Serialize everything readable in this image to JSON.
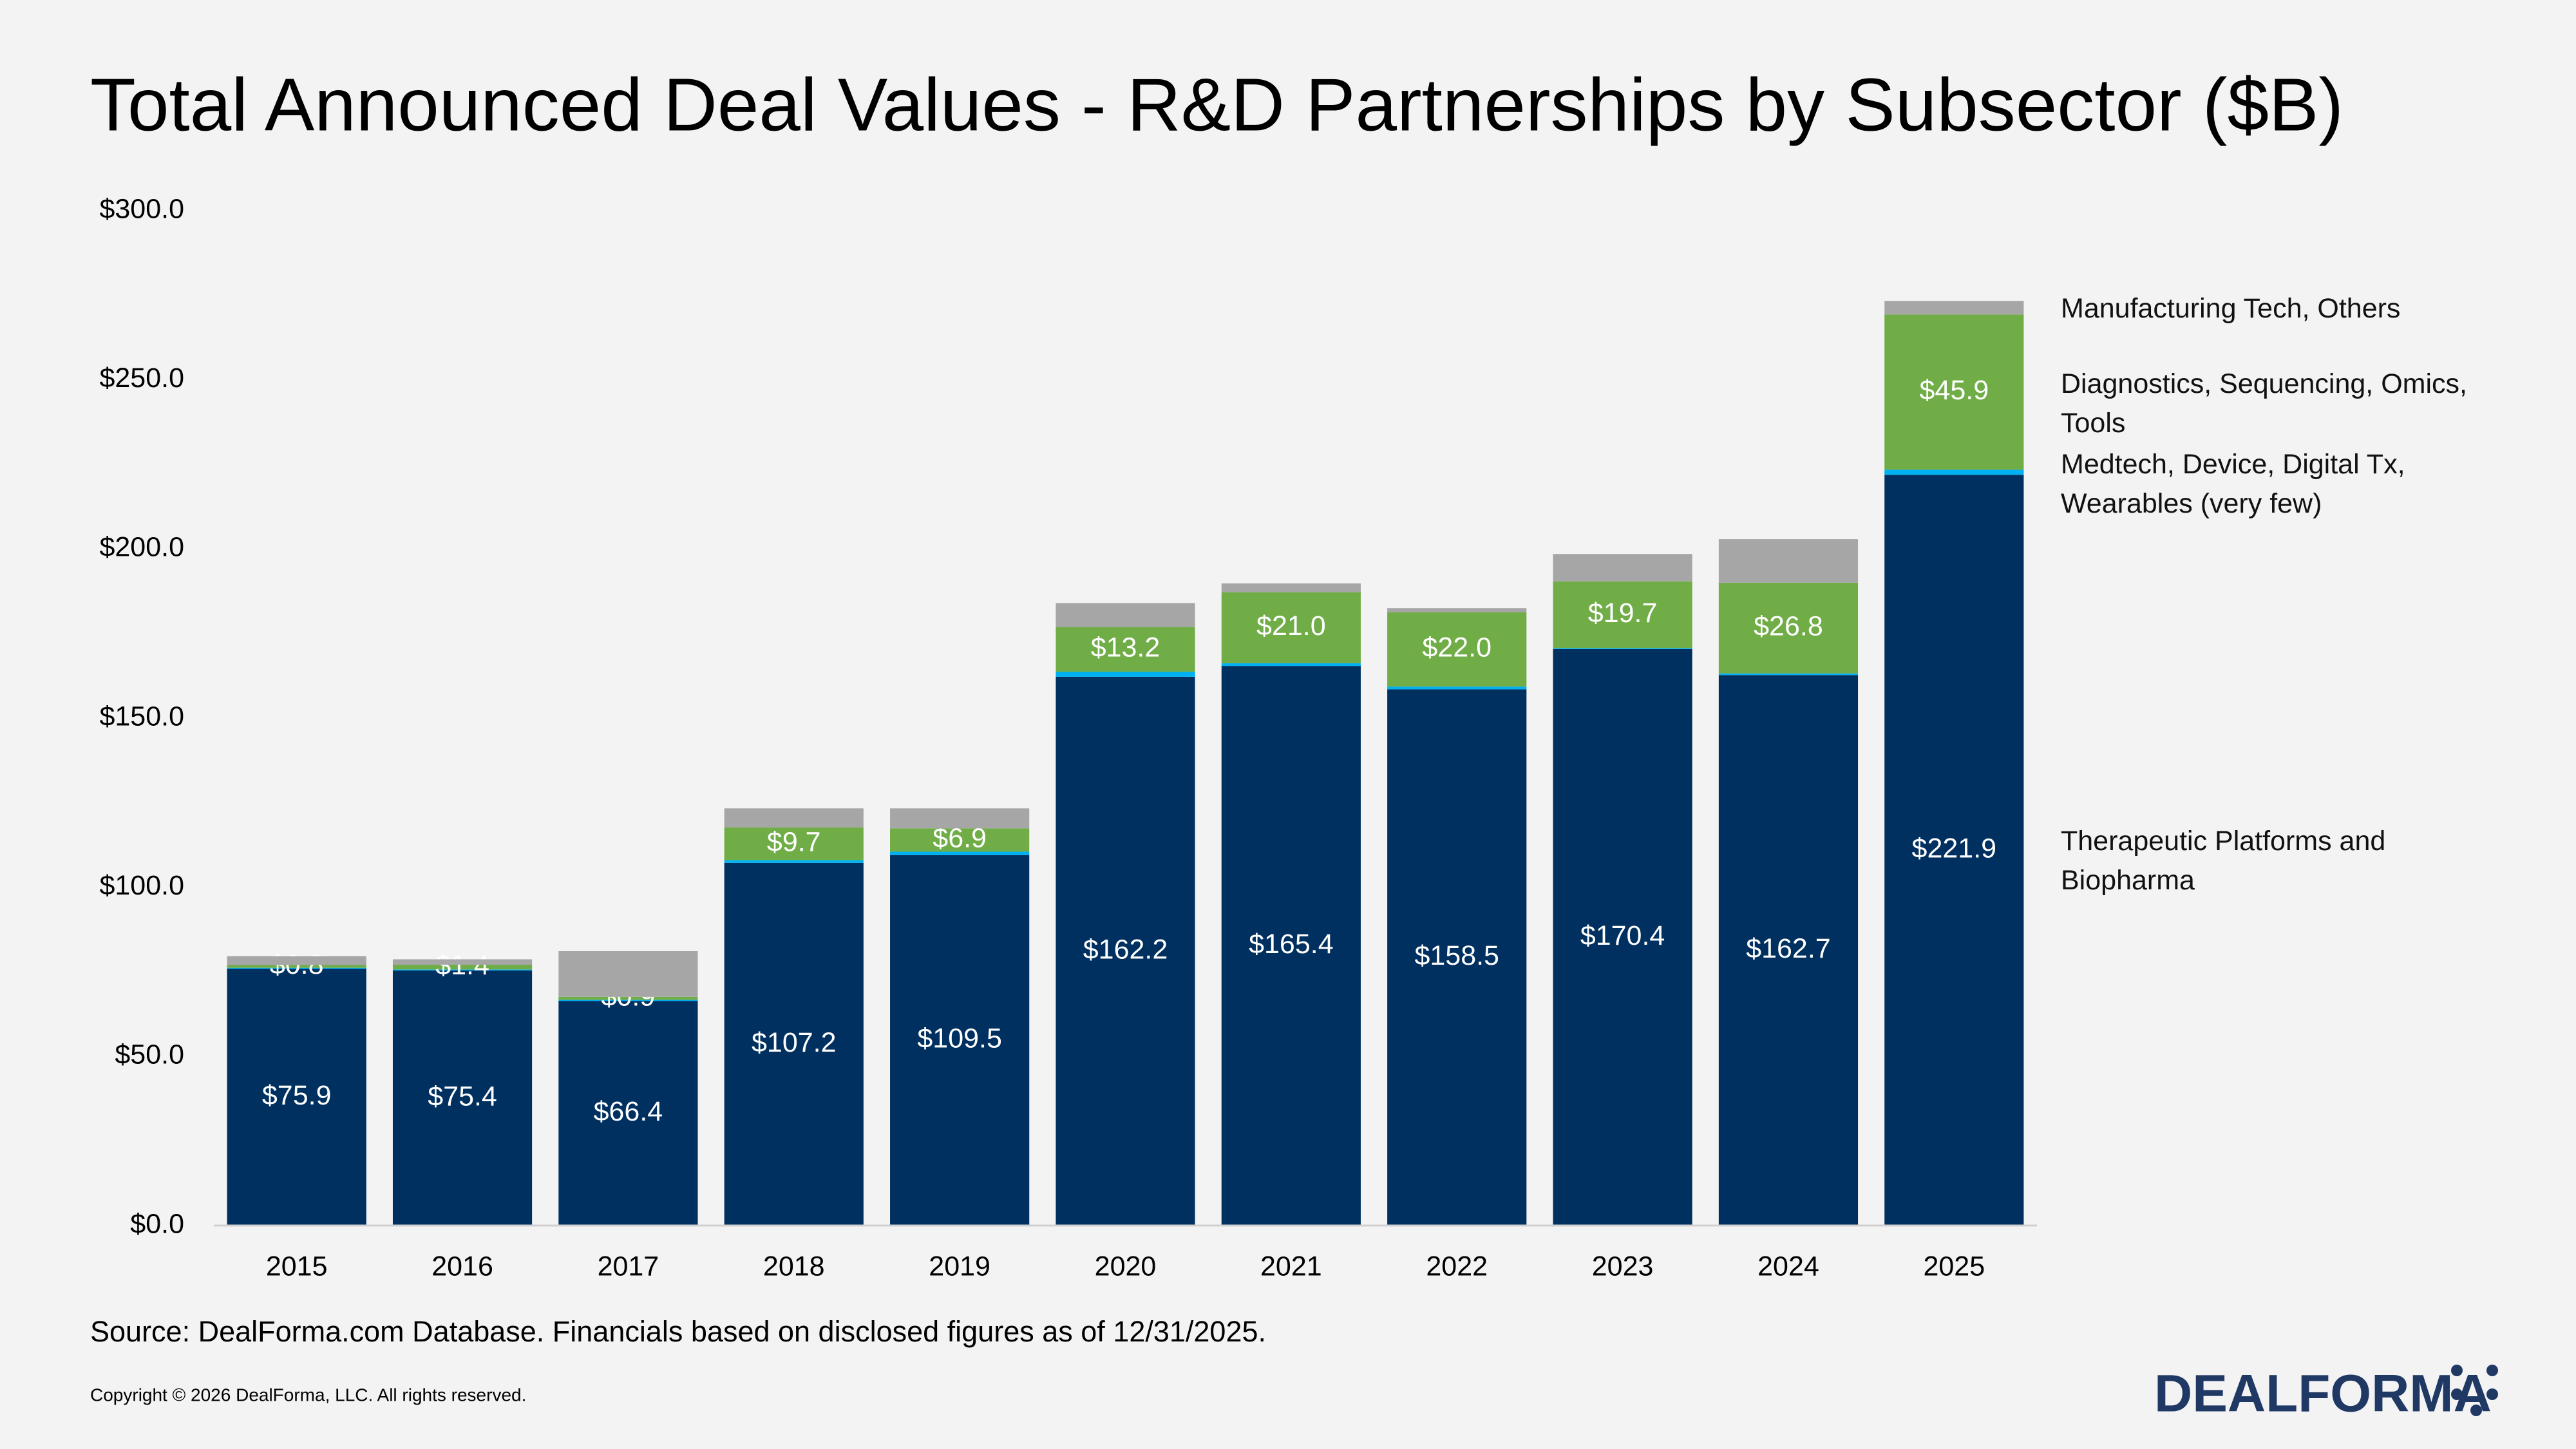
{
  "chart_data": {
    "type": "stacked_bar",
    "title": "Total Announced Deal Values - R&D Partnerships by Subsector ($B)",
    "categories": [
      "2015",
      "2016",
      "2017",
      "2018",
      "2019",
      "2020",
      "2021",
      "2022",
      "2023",
      "2024",
      "2025"
    ],
    "series": [
      {
        "name": "Therapeutic Platforms and Biopharma",
        "color": "#00305f",
        "values": [
          75.9,
          75.4,
          66.4,
          107.2,
          109.5,
          162.2,
          165.4,
          158.5,
          170.4,
          162.7,
          221.9
        ],
        "value_labels": [
          "$75.9",
          "$75.4",
          "$66.4",
          "$107.2",
          "$109.5",
          "$162.2",
          "$165.4",
          "$158.5",
          "$170.4",
          "$162.7",
          "$221.9"
        ]
      },
      {
        "name": "Medtech, Device, Digital Tx, Wearables (very few)",
        "color": "#00b0f0",
        "values": [
          0.3,
          0.3,
          0.3,
          0.8,
          1.0,
          1.5,
          0.8,
          0.8,
          0.3,
          0.5,
          1.5
        ]
      },
      {
        "name": "Diagnostics, Sequencing, Omics, Tools",
        "color": "#70ad47",
        "values": [
          0.8,
          1.4,
          0.9,
          9.7,
          6.9,
          13.2,
          21.0,
          22.0,
          19.7,
          26.8,
          45.9
        ],
        "value_labels": [
          "$0.8",
          "$1.4",
          "$0.9",
          "$9.7",
          "$6.9",
          "$13.2",
          "$21.0",
          "$22.0",
          "$19.7",
          "$26.8",
          "$45.9"
        ]
      },
      {
        "name": "Manufacturing Tech, Others",
        "color": "#a6a6a6",
        "values": [
          2.6,
          1.6,
          13.5,
          5.6,
          5.9,
          7.1,
          2.6,
          1.2,
          8.1,
          12.9,
          4.0
        ]
      }
    ],
    "ylim": [
      0,
      300
    ],
    "yticks": [
      {
        "value": 0,
        "label": "$0.0"
      },
      {
        "value": 50,
        "label": "$50.0"
      },
      {
        "value": 100,
        "label": "$100.0"
      },
      {
        "value": 150,
        "label": "$150.0"
      },
      {
        "value": 200,
        "label": "$200.0"
      },
      {
        "value": 250,
        "label": "$250.0"
      },
      {
        "value": 300,
        "label": "$300.0"
      }
    ],
    "grid": false,
    "legend": "right",
    "source": "Source: DealForma.com Database. Financials based on disclosed figures as of 12/31/2025."
  },
  "footer": {
    "copyright": "Copyright © 2026 DealForma, LLC. All rights reserved.",
    "logo": "DEALFORMA"
  }
}
